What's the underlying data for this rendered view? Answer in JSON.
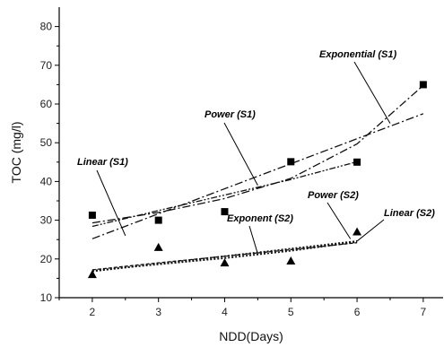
{
  "chart_data": {
    "type": "scatter",
    "xlabel": "NDD(Days)",
    "ylabel": "TOC (mg/l)",
    "xlim": [
      1.5,
      7.3
    ],
    "ylim": [
      10,
      85
    ],
    "xticks": [
      "2",
      "3",
      "4",
      "5",
      "6",
      "7"
    ],
    "yticks": [
      "10",
      "20",
      "30",
      "40",
      "50",
      "60",
      "70",
      "80"
    ],
    "grid": false,
    "series": [
      {
        "key": "s1",
        "marker": "square",
        "x": [
          2,
          3,
          4,
          5,
          6,
          7
        ],
        "y": [
          31.3,
          30,
          32.2,
          45.1,
          45,
          65
        ]
      },
      {
        "key": "s2",
        "marker": "triangle",
        "x": [
          2,
          3,
          4,
          5,
          6
        ],
        "y": [
          16,
          23,
          19,
          19.5,
          27
        ]
      }
    ],
    "fits": [
      {
        "name": "Linear (S1)",
        "group": "s1",
        "style": "dash-dot",
        "x": [
          2,
          7
        ],
        "y": [
          25.2,
          57.5
        ]
      },
      {
        "name": "Power (S1)",
        "group": "s1",
        "style": "dash-dot-dot",
        "x": [
          2,
          3,
          4,
          5,
          6
        ],
        "y": [
          28.4,
          32.5,
          36.5,
          40.5,
          45.1
        ]
      },
      {
        "name": "Exponential (S1)",
        "group": "s1",
        "style": "dash-dot",
        "x": [
          2,
          3,
          4,
          5,
          6,
          7
        ],
        "y": [
          29.3,
          32,
          35.6,
          40.8,
          49.7,
          64.8
        ]
      },
      {
        "name": "Linear (S2)",
        "group": "s2",
        "style": "dotted",
        "x": [
          2,
          6
        ],
        "y": [
          16.8,
          24.6
        ]
      },
      {
        "name": "Power (S2)",
        "group": "s2",
        "style": "short-dash",
        "x": [
          2,
          3,
          4,
          5,
          6
        ],
        "y": [
          17.2,
          19,
          20.7,
          22.4,
          24.2
        ]
      },
      {
        "name": "Exponent (S2)",
        "group": "s2",
        "style": "dotted",
        "x": [
          2,
          3,
          4,
          5,
          6
        ],
        "y": [
          17,
          18.6,
          20.2,
          22.1,
          24.4
        ]
      }
    ],
    "annotations": [
      {
        "text": "Exponential (S1)",
        "point": [
          6.5,
          55
        ]
      },
      {
        "text": "Power (S1)",
        "point": [
          4.5,
          39
        ]
      },
      {
        "text": "Linear (S1)",
        "point": [
          2.5,
          26
        ]
      },
      {
        "text": "Power (S2)",
        "point": [
          5.9,
          25.2
        ]
      },
      {
        "text": "Exponent (S2)",
        "point": [
          4.5,
          21.3
        ]
      },
      {
        "text": "Linear (S2)",
        "point": [
          6,
          24.6
        ]
      }
    ]
  }
}
